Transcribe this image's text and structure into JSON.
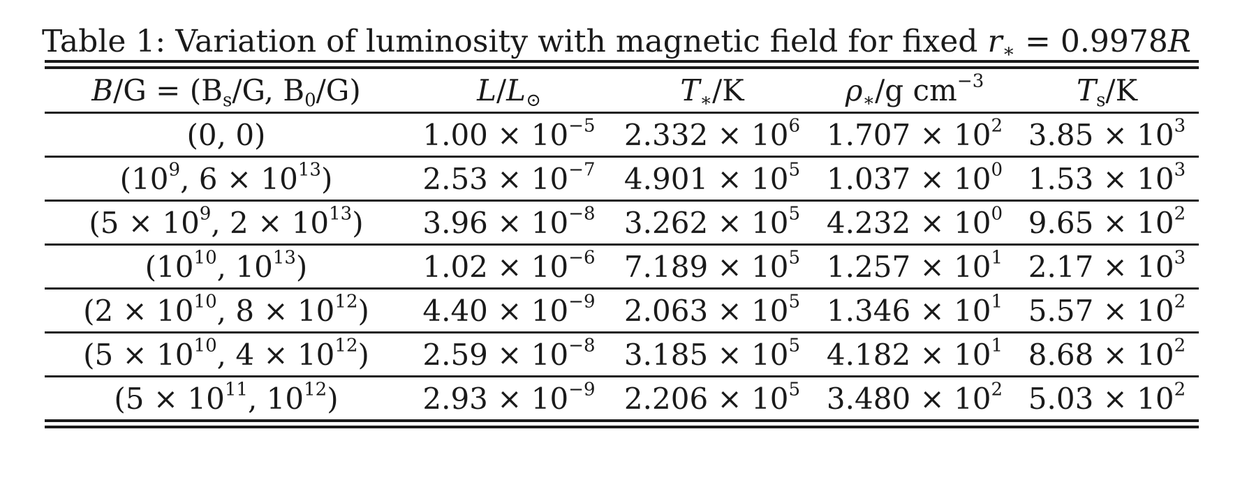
{
  "caption": {
    "prefix": "Table 1: Variation of luminosity with magnetic field for fixed ",
    "r": "r",
    "sub": "∗",
    "eq": " = 0.9978",
    "R": "R"
  },
  "header": {
    "col0": {
      "B": "B",
      "rest": "/G = (B",
      "s": "s",
      "mid": "/G, B",
      "zero": "0",
      "end": "/G)"
    },
    "col1": {
      "L": "L",
      "slash": "/",
      "L2": "L",
      "sun": "⊙"
    },
    "col2": {
      "T": "T",
      "star": "∗",
      "unit": "/K"
    },
    "col3": {
      "rho": "ρ",
      "star": "∗",
      "unit": "/g cm",
      "exp": "−3"
    },
    "col4": {
      "T": "T",
      "s": "s",
      "unit": "/K"
    }
  },
  "rows": [
    {
      "b": [
        {
          "t": "(0, 0)"
        }
      ],
      "L": {
        "m": "1.00",
        "e": "−5"
      },
      "T": {
        "m": "2.332",
        "e": "6"
      },
      "rho": {
        "m": "1.707",
        "e": "2"
      },
      "Ts": {
        "m": "3.85",
        "e": "3"
      }
    },
    {
      "b": [
        {
          "t": "(10"
        },
        {
          "s": "9"
        },
        {
          "t": ", 6 × 10"
        },
        {
          "s": "13"
        },
        {
          "t": ")"
        }
      ],
      "L": {
        "m": "2.53",
        "e": "−7"
      },
      "T": {
        "m": "4.901",
        "e": "5"
      },
      "rho": {
        "m": "1.037",
        "e": "0"
      },
      "Ts": {
        "m": "1.53",
        "e": "3"
      }
    },
    {
      "b": [
        {
          "t": "(5 × 10"
        },
        {
          "s": "9"
        },
        {
          "t": ", 2 × 10"
        },
        {
          "s": "13"
        },
        {
          "t": ")"
        }
      ],
      "L": {
        "m": "3.96",
        "e": "−8"
      },
      "T": {
        "m": "3.262",
        "e": "5"
      },
      "rho": {
        "m": "4.232",
        "e": "0"
      },
      "Ts": {
        "m": "9.65",
        "e": "2"
      }
    },
    {
      "b": [
        {
          "t": "(10"
        },
        {
          "s": "10"
        },
        {
          "t": ", 10"
        },
        {
          "s": "13"
        },
        {
          "t": ")"
        }
      ],
      "L": {
        "m": "1.02",
        "e": "−6"
      },
      "T": {
        "m": "7.189",
        "e": "5"
      },
      "rho": {
        "m": "1.257",
        "e": "1"
      },
      "Ts": {
        "m": "2.17",
        "e": "3"
      }
    },
    {
      "b": [
        {
          "t": "(2 × 10"
        },
        {
          "s": "10"
        },
        {
          "t": ", 8 × 10"
        },
        {
          "s": "12"
        },
        {
          "t": ")"
        }
      ],
      "L": {
        "m": "4.40",
        "e": "−9"
      },
      "T": {
        "m": "2.063",
        "e": "5"
      },
      "rho": {
        "m": "1.346",
        "e": "1"
      },
      "Ts": {
        "m": "5.57",
        "e": "2"
      }
    },
    {
      "b": [
        {
          "t": "(5 × 10"
        },
        {
          "s": "10"
        },
        {
          "t": ", 4 × 10"
        },
        {
          "s": "12"
        },
        {
          "t": ")"
        }
      ],
      "L": {
        "m": "2.59",
        "e": "−8"
      },
      "T": {
        "m": "3.185",
        "e": "5"
      },
      "rho": {
        "m": "4.182",
        "e": "1"
      },
      "Ts": {
        "m": "8.68",
        "e": "2"
      }
    },
    {
      "b": [
        {
          "t": "(5 × 10"
        },
        {
          "s": "11"
        },
        {
          "t": ", 10"
        },
        {
          "s": "12"
        },
        {
          "t": ")"
        }
      ],
      "L": {
        "m": "2.93",
        "e": "−9"
      },
      "T": {
        "m": "2.206",
        "e": "5"
      },
      "rho": {
        "m": "3.480",
        "e": "2"
      },
      "Ts": {
        "m": "5.03",
        "e": "2"
      }
    }
  ],
  "times": " × 10"
}
